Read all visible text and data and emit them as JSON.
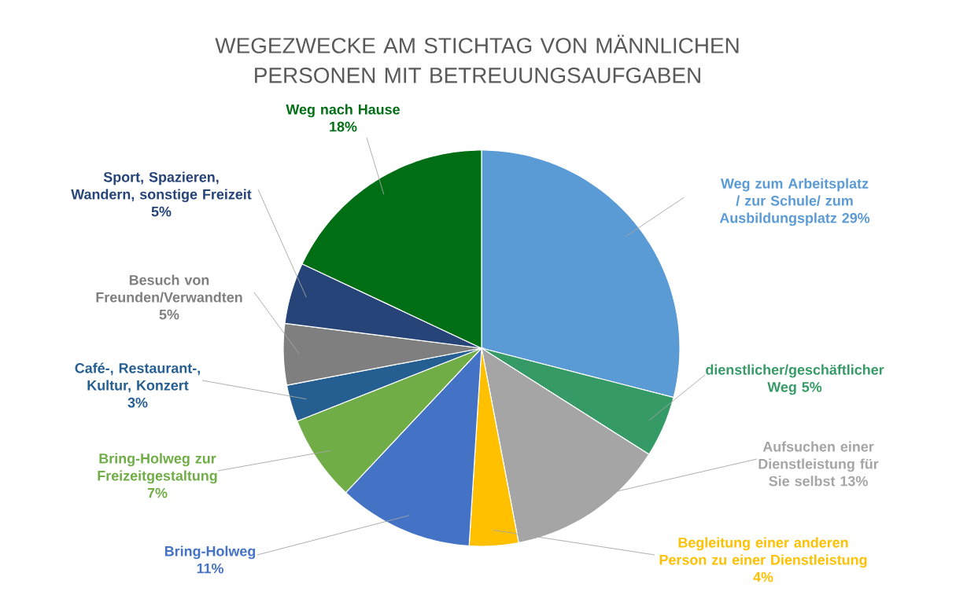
{
  "chart_data": {
    "type": "pie",
    "title": "WEGEZWECKE AM STICHTAG VON MÄNNLICHEN PERSONEN MIT BETREUUNGSAUFGABEN",
    "categories": [
      "Weg zum Arbeitsplatz / zur Schule/ zum Ausbildungsplatz",
      "dienstlicher/geschäftlicher Weg",
      "Aufsuchen einer Dienstleistung für Sie selbst",
      "Begleitung einer anderen Person zu einer Dienstleistung",
      "Bring-Holweg",
      "Bring-Holweg zur Freizeitgestaltung",
      "Café-, Restaurant-, Kultur, Konzert",
      "Besuch von Freunden/Verwandten",
      "Sport, Spazieren, Wandern, sonstige Freizeit",
      "Weg nach Hause"
    ],
    "values": [
      29,
      5,
      13,
      4,
      11,
      7,
      3,
      5,
      5,
      18
    ],
    "value_labels": [
      "29%",
      "5%",
      "13%",
      "4%",
      "11%",
      "7%",
      "3%",
      "5%",
      "5%",
      "18%"
    ],
    "colors": [
      "#5b9bd5",
      "#359a65",
      "#a5a5a5",
      "#ffc000",
      "#4472c4",
      "#70ad47",
      "#255e91",
      "#7f7f7f",
      "#264478",
      "#006e14"
    ]
  }
}
